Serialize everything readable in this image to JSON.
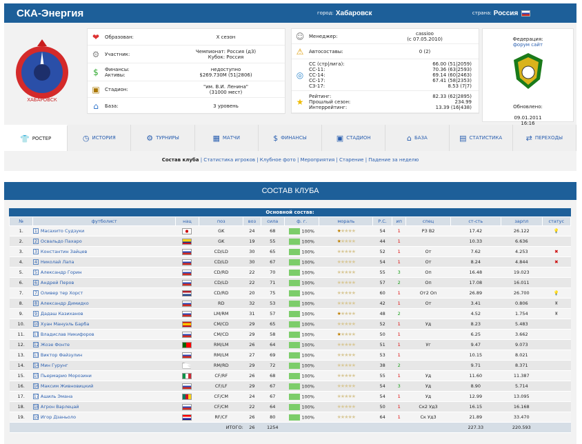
{
  "header": {
    "club": "СКА-Энергия",
    "city_label": "город:",
    "city": "Хабаровск",
    "country_label": "страна:",
    "country": "Россия"
  },
  "info_left": [
    {
      "key": "Образован:",
      "value": "X сезон",
      "icon": "heart-icon"
    },
    {
      "key": "Участник:",
      "value": "Чемпионат: Россия (д3)\nКубок: Россия",
      "icon": "gear-icon"
    },
    {
      "key": "Финансы:\nАктивы:",
      "value": "недоступно\n$269.730M (51|2806)",
      "icon": "money-icon"
    },
    {
      "key": "Стадион:",
      "value": "\"им. В.И. Ленина\"\n(31000 мест)",
      "icon": "stadium-icon"
    },
    {
      "key": "База:",
      "value": "3 уровень",
      "icon": "base-icon"
    }
  ],
  "info_mid": [
    {
      "key": "Менеджер:",
      "value": "cassioo\n(с 07.05.2010)",
      "icon": "manager-icon"
    },
    {
      "key": "Автосоставы:",
      "value": "0 (2)",
      "icon": "warning-icon"
    },
    {
      "key": "СС (стр|лига):\nСС-11:\nСС-14:\nСС-17:\nСЗ-17:",
      "value": "66.00 (51|2059)\n70.36 (63|2593)\n69.14 (60|2463)\n67.41 (58|2353)\n8.53 (7|7)",
      "icon": "rating-icon"
    },
    {
      "key": "Рейтинг:\nПрошлый сезон:\nИнтеррейтинг:",
      "value": "82.33 (62|2895)\n234.99\n13.39 (16|438)",
      "icon": "star-icon"
    }
  ],
  "federation": {
    "label": "Федерация:",
    "links": "форум сайт",
    "updated_label": "Обновлено:",
    "updated": "09.01.2011\n16:16"
  },
  "tabs": [
    "ростер",
    "история",
    "турниры",
    "матчи",
    "финансы",
    "стадион",
    "база",
    "статистика",
    "переходы"
  ],
  "sublinks": {
    "active": "Состав клуба",
    "others": " | Статистика игроков | Клубное фото | Мероприятия | Старение | Падение за неделю"
  },
  "section_title": "СОСТАВ КЛУБА",
  "table": {
    "caption": "Основной состав:",
    "headers": [
      "№",
      "футболист",
      "нац",
      "поз",
      "воз",
      "сила",
      "ф. г.",
      "мораль",
      "Р.С.",
      "ип",
      "спец",
      "ст-сть",
      "зарпл",
      "статус"
    ],
    "rows": [
      [
        "1",
        "Масахито Судзуки",
        "jp",
        "GK",
        "24",
        "68",
        "100%",
        "1",
        "54",
        "1",
        "РЗ В2",
        "17.42",
        "26.122",
        "bulb"
      ],
      [
        "2",
        "Освальдо Пахаро",
        "co",
        "GK",
        "19",
        "55",
        "100%",
        "1",
        "44",
        "1",
        "",
        "10.33",
        "6.636",
        ""
      ],
      [
        "3",
        "Константин Зайцев",
        "ru",
        "CD/LD",
        "30",
        "65",
        "100%",
        "0",
        "52",
        "1",
        "От",
        "7.62",
        "4.253",
        "injury"
      ],
      [
        "4",
        "Николай Лапа",
        "ru",
        "CD/LD",
        "30",
        "67",
        "100%",
        "0",
        "54",
        "1",
        "От",
        "8.24",
        "4.844",
        "injury"
      ],
      [
        "5",
        "Александр Горин",
        "ru",
        "CD/RD",
        "22",
        "70",
        "100%",
        "0",
        "55",
        "3",
        "Оп",
        "16.48",
        "19.023",
        ""
      ],
      [
        "6",
        "Андрей Перов",
        "ru",
        "CD/LD",
        "22",
        "71",
        "100%",
        "0",
        "57",
        "2",
        "Оп",
        "17.08",
        "16.011",
        ""
      ],
      [
        "7",
        "Оливер тер Хорст",
        "nl",
        "CD/RD",
        "20",
        "75",
        "100%",
        "0",
        "60",
        "1",
        "От2 Оп",
        "26.89",
        "26.700",
        "bulb"
      ],
      [
        "8",
        "Александр Димидко",
        "ru",
        "RD",
        "32",
        "53",
        "100%",
        "0",
        "42",
        "1",
        "От",
        "3.41",
        "0.806",
        "trophy"
      ],
      [
        "9",
        "Дадаш Казиханов",
        "ru",
        "LM/RM",
        "31",
        "57",
        "100%",
        "1",
        "48",
        "2",
        "",
        "4.52",
        "1.754",
        "trophy"
      ],
      [
        "10",
        "Хуан Мануэль Барба",
        "es",
        "CM/CD",
        "29",
        "65",
        "100%",
        "0",
        "52",
        "1",
        "Уд",
        "8.23",
        "5.483",
        ""
      ],
      [
        "11",
        "Владислав Никифоров",
        "ru",
        "CM/CD",
        "29",
        "58",
        "100%",
        "1",
        "50",
        "1",
        "",
        "6.25",
        "3.662",
        ""
      ],
      [
        "12",
        "Жозе Фонте",
        "pt",
        "RM/LM",
        "26",
        "64",
        "100%",
        "0",
        "51",
        "1",
        "Уг",
        "9.47",
        "9.073",
        ""
      ],
      [
        "13",
        "Виктор Файзулин",
        "ru",
        "RM/LM",
        "27",
        "69",
        "100%",
        "0",
        "53",
        "1",
        "",
        "10.15",
        "8.021",
        ""
      ],
      [
        "14",
        "Мин Гурунг",
        "np",
        "RM/RD",
        "29",
        "72",
        "100%",
        "0",
        "38",
        "2",
        "",
        "9.71",
        "8.371",
        ""
      ],
      [
        "15",
        "Пьермарио Морозини",
        "it",
        "CF/RF",
        "26",
        "68",
        "100%",
        "0",
        "55",
        "1",
        "Уд",
        "11.60",
        "11.387",
        ""
      ],
      [
        "16",
        "Максим Живновицкий",
        "ru",
        "CF/LF",
        "29",
        "67",
        "100%",
        "0",
        "54",
        "3",
        "Уд",
        "8.90",
        "5.714",
        ""
      ],
      [
        "17",
        "Ашиль Эмана",
        "cm",
        "CF/CM",
        "24",
        "67",
        "100%",
        "0",
        "54",
        "1",
        "Уд",
        "12.99",
        "13.095",
        ""
      ],
      [
        "18",
        "Агрон Варлецай",
        "ru",
        "CF/CM",
        "22",
        "64",
        "100%",
        "0",
        "50",
        "1",
        "Ск2 Уд3",
        "16.15",
        "16.168",
        ""
      ],
      [
        "19",
        "Игор Дзаньоло",
        "hr",
        "RF/CF",
        "26",
        "80",
        "100%",
        "0",
        "64",
        "1",
        "Ск Уд3",
        "21.89",
        "33.470",
        ""
      ]
    ],
    "total": {
      "label": "ИТОГО:",
      "age": "26",
      "power": "1254",
      "cost": "227.33",
      "salary": "220.593"
    }
  },
  "colors": {
    "header": "#1d5f99",
    "link": "#2a5fb0",
    "form": "#7ccd6a"
  }
}
